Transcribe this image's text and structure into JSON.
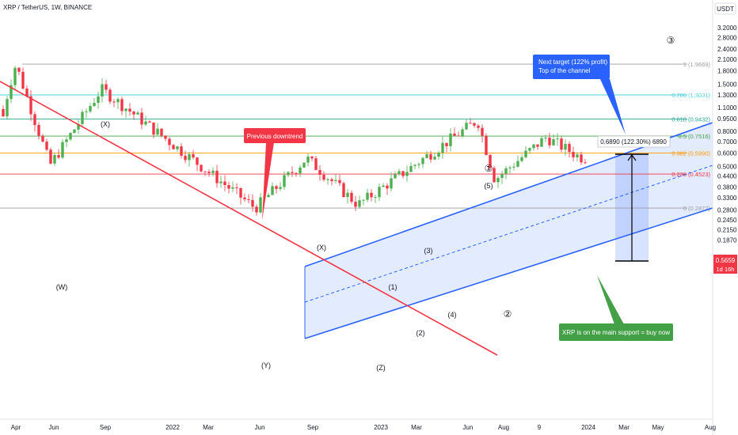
{
  "header": {
    "symbol_line": "XRP / TetherUS, 1W, BINANCE",
    "currency": "USDT"
  },
  "price_tag": {
    "value": "0.5659",
    "countdown": "1d 16h"
  },
  "y_axis": {
    "scale": "log",
    "ticks": [
      "3.2000",
      "2.8000",
      "2.4000",
      "2.1000",
      "1.8000",
      "1.5000",
      "1.3000",
      "1.1000",
      "0.9500",
      "0.8000",
      "0.7000",
      "0.6000",
      "0.5000",
      "0.4400",
      "0.3800",
      "0.3300",
      "0.2800",
      "0.2450",
      "0.2150",
      "0.1870"
    ]
  },
  "x_axis": {
    "ticks": [
      "Apr",
      "Jun",
      "Sep",
      "2022",
      "Mar",
      "Jun",
      "Sep",
      "2023",
      "Mar",
      "Jun",
      "Aug",
      "9",
      "2024",
      "Mar",
      "May",
      "Aug"
    ]
  },
  "fib_levels": [
    {
      "label": "1 (1.9669)",
      "color": "#9e9e9e"
    },
    {
      "label": "0.786 (1.3031)",
      "color": "#4dd0e1"
    },
    {
      "label": "0.618 (0.9432)",
      "color": "#26a69a"
    },
    {
      "label": "0.5 (0.7516)",
      "color": "#43a047"
    },
    {
      "label": "0.382 (0.5990)",
      "color": "#ff9800"
    },
    {
      "label": "0.236 (0.4523)",
      "color": "#f23645"
    },
    {
      "label": "0 (0.2872)",
      "color": "#9e9e9e"
    }
  ],
  "wave_labels": [
    "(X)",
    "(W)",
    "(Y)",
    "(X)",
    "(Z)",
    "(1)",
    "(2)",
    "(3)",
    "(4)",
    "(5)",
    "①",
    "②",
    "③"
  ],
  "callouts": {
    "downtrend": "Previous downtrend",
    "target_line1": "Next target (122% profit)",
    "target_line2": "Top of the channel",
    "support": "XRP is on the main support = buy now"
  },
  "measure_label": "0.6890 (122.30%) 6890",
  "colors": {
    "up": "#4caf50",
    "down": "#f23645",
    "channel": "#2962ff",
    "trend": "#f23645",
    "target_box": "#2962ff",
    "support_box": "#43a047"
  },
  "chart_data": {
    "type": "candlestick",
    "title": "XRP / TetherUS, 1W, BINANCE",
    "y_scale": "log",
    "ylim": [
      0.187,
      3.2
    ],
    "last_price": 0.5659,
    "swing_points": [
      {
        "date": "2021-04",
        "price": 1.96
      },
      {
        "date": "2021-06",
        "price": 0.51
      },
      {
        "date": "2021-09",
        "price": 1.41
      },
      {
        "date": "2022-06",
        "price": 0.287
      },
      {
        "date": "2022-09",
        "price": 0.56
      },
      {
        "date": "2022-12",
        "price": 0.3
      },
      {
        "date": "2023-07",
        "price": 0.93
      },
      {
        "date": "2023-08",
        "price": 0.42
      },
      {
        "date": "2023-11",
        "price": 0.74
      },
      {
        "date": "2024-01",
        "price": 0.5659
      }
    ],
    "target_price": 1.3031,
    "measured_move": "0.6890 (122.30%)"
  }
}
